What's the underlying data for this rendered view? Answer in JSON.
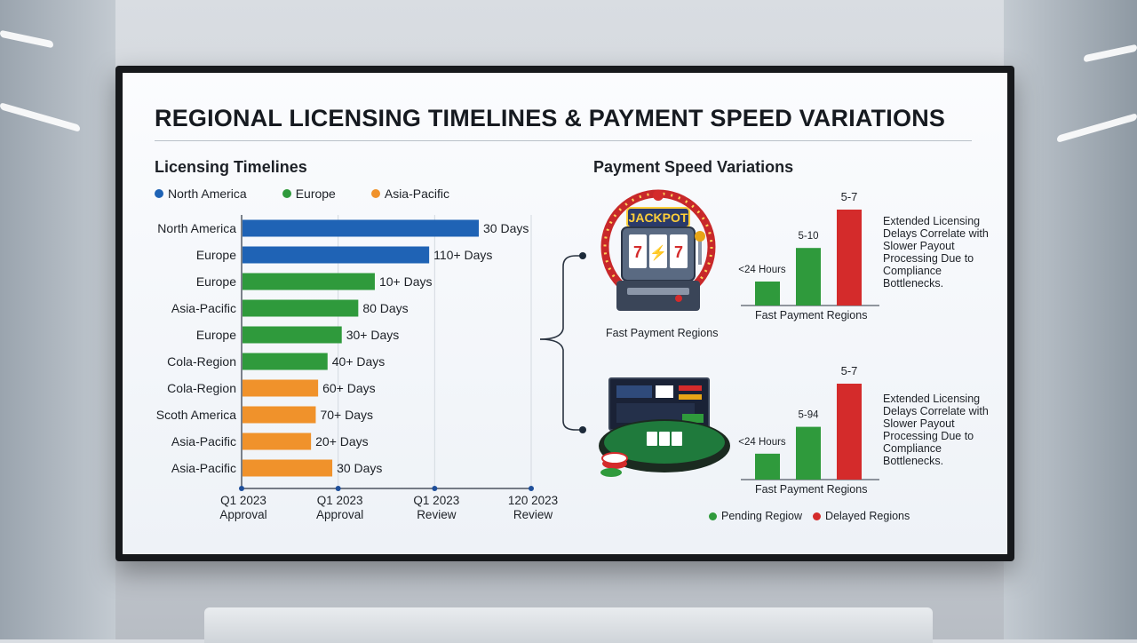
{
  "title": "REGIONAL LICENSING TIMELINES & PAYMENT SPEED VARIATIONS",
  "left_panel": {
    "title": "Licensing Timelines",
    "legend": [
      {
        "label": "North America",
        "color": "#1f63b5"
      },
      {
        "label": "Europe",
        "color": "#2f9a3c"
      },
      {
        "label": "Asia-Pacific",
        "color": "#f0922b"
      }
    ]
  },
  "right_panel": {
    "title": "Payment Speed Variations",
    "slot_caption": "Fast Payment Regions",
    "slot_sign": "JACKPOT",
    "slot_reels": [
      "7",
      "⚡",
      "7"
    ],
    "note_top": "Extended Licensing Delays Correlate with Slower Payout Processing Due to Compliance Bottlenecks.",
    "note_bottom": "Extended Licensing Delays Correlate with Slower Payout Processing Due to Compliance Bottlenecks.",
    "caption_top": "Fast Payment Regions",
    "caption_bottom": "Fast Payment Regions",
    "legend": [
      {
        "label": "Pending Regiow",
        "color": "#2f9a3c"
      },
      {
        "label": "Delayed Regions",
        "color": "#d42b2b"
      }
    ]
  },
  "chart_data": [
    {
      "type": "bar",
      "orientation": "horizontal",
      "categories": [
        "North America",
        "Europe",
        "Europe",
        "Asia-Pacific",
        "Europe",
        "Cola-Region",
        "Cola-Region",
        "Scoth America",
        "Asia-Pacific",
        "Asia-Pacific"
      ],
      "values": [
        100,
        79,
        56,
        49,
        42,
        36,
        32,
        31,
        29,
        38
      ],
      "value_labels": [
        "30 Days",
        "110+ Days",
        "10+ Days",
        "80 Days",
        "30+ Days",
        "40+ Days",
        "60+ Days",
        "70+ Days",
        "20+ Days",
        "30 Days"
      ],
      "bar_colors": [
        "#1f63b5",
        "#1f63b5",
        "#2f9a3c",
        "#2f9a3c",
        "#2f9a3c",
        "#2f9a3c",
        "#f0922b",
        "#f0922b",
        "#f0922b",
        "#f0922b"
      ],
      "x_ticks": [
        "Q1 2023\nApproval",
        "Q1 2023\nApproval",
        "Q1 2023\nReview",
        "120 2023\nReview"
      ],
      "xlim": [
        0,
        100
      ],
      "grid": true
    },
    {
      "type": "bar",
      "categories": [
        "<24 Hours",
        "5-10",
        "5-7"
      ],
      "values": [
        25,
        60,
        100
      ],
      "value_labels": [
        "<24 Hours",
        "5-10",
        "5-7"
      ],
      "bar_colors": [
        "#2f9a3c",
        "#2f9a3c",
        "#d42b2b"
      ],
      "ylim": [
        0,
        100
      ],
      "xlabel": "Fast Payment Regions"
    },
    {
      "type": "bar",
      "categories": [
        "<24 Hours",
        "5-94",
        "5-7"
      ],
      "values": [
        27,
        55,
        100
      ],
      "value_labels": [
        "<24 Hours",
        "5-94",
        "5-7"
      ],
      "bar_colors": [
        "#2f9a3c",
        "#2f9a3c",
        "#d42b2b"
      ],
      "ylim": [
        0,
        100
      ],
      "xlabel": "Fast Payment Regions"
    }
  ]
}
